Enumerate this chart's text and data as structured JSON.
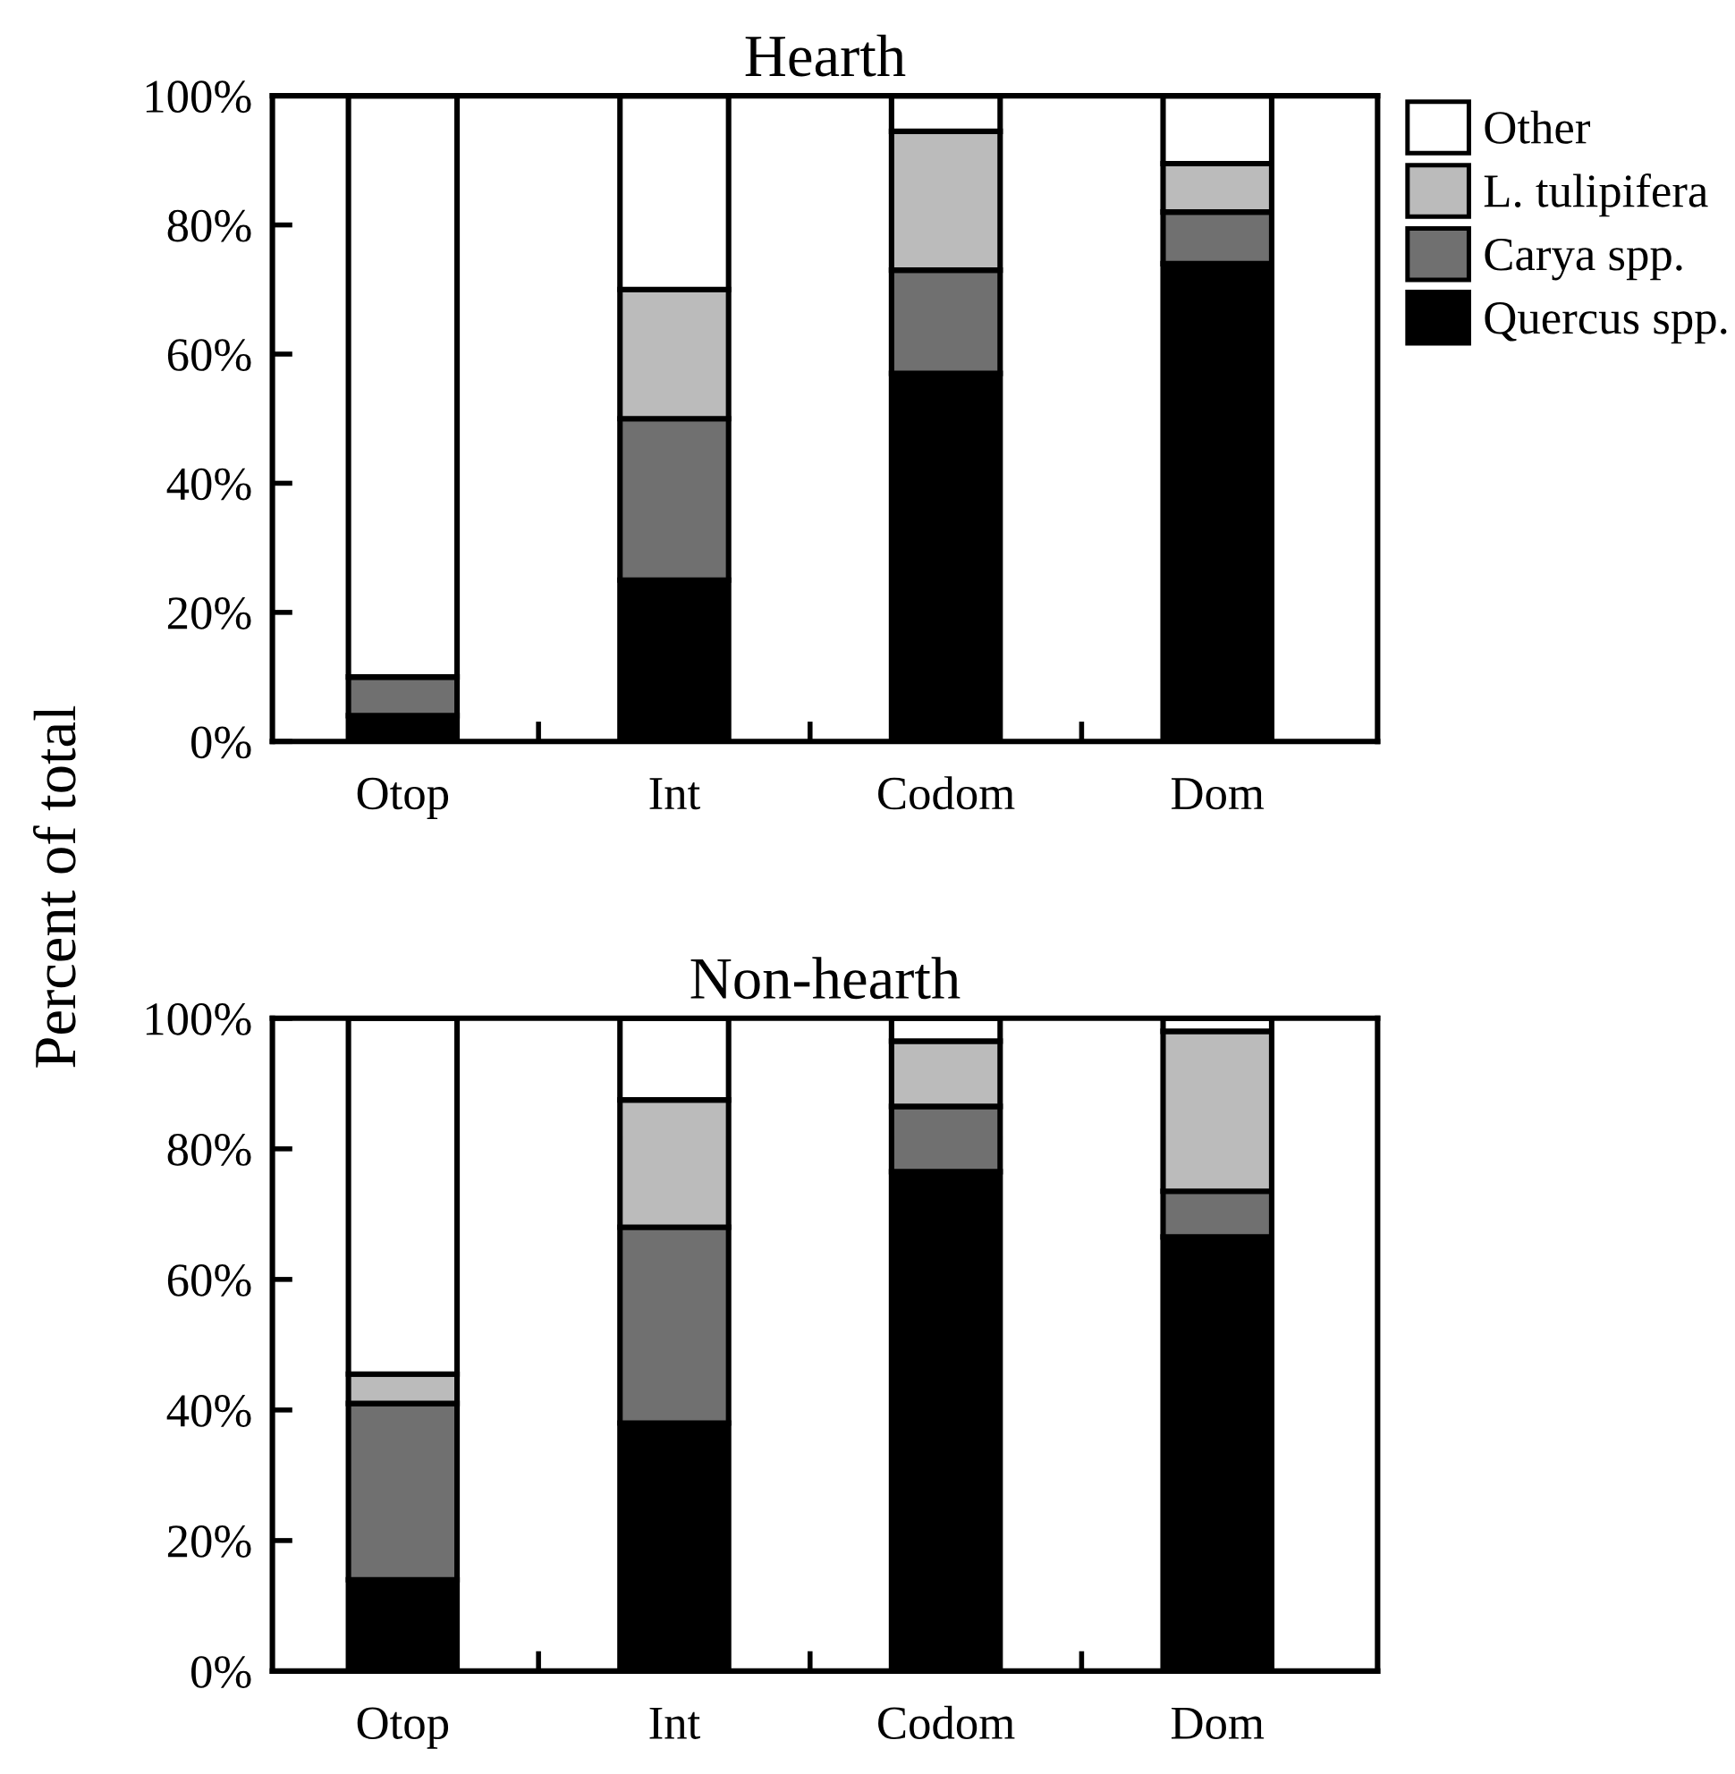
{
  "chart_data": [
    {
      "type": "bar",
      "stacked": true,
      "title": "Hearth",
      "ylabel": "Percent of total",
      "categories": [
        "Otop",
        "Int",
        "Codom",
        "Dom"
      ],
      "series": [
        {
          "name": "Quercus spp.",
          "color": "#000000",
          "values": [
            4,
            25,
            57,
            74
          ]
        },
        {
          "name": "Carya spp.",
          "color": "#707070",
          "values": [
            6,
            25,
            16,
            8
          ]
        },
        {
          "name": "L. tulipifera",
          "color": "#bbbbbb",
          "values": [
            0,
            20,
            21.5,
            7.5
          ]
        },
        {
          "name": "Other",
          "color": "#ffffff",
          "values": [
            90,
            30,
            5.5,
            10.5
          ]
        }
      ],
      "ylim": [
        0,
        100
      ],
      "yticks": [
        {
          "value": 0,
          "label": "0%"
        },
        {
          "value": 20,
          "label": "20%"
        },
        {
          "value": 40,
          "label": "40%"
        },
        {
          "value": 60,
          "label": "60%"
        },
        {
          "value": 80,
          "label": "80%"
        },
        {
          "value": 100,
          "label": "100%"
        }
      ],
      "legend": "right",
      "grid": false
    },
    {
      "type": "bar",
      "stacked": true,
      "title": "Non-hearth",
      "categories": [
        "Otop",
        "Int",
        "Codom",
        "Dom"
      ],
      "series": [
        {
          "color": "#000000",
          "values": [
            14,
            38,
            76.5,
            66.5
          ]
        },
        {
          "color": "#707070",
          "values": [
            27,
            30,
            10,
            7
          ]
        },
        {
          "color": "#bbbbbb",
          "values": [
            4.5,
            19.5,
            10,
            24.5
          ]
        },
        {
          "color": "#ffffff",
          "values": [
            54.5,
            12.5,
            3.5,
            2
          ]
        }
      ],
      "ylim": [
        0,
        100
      ],
      "yticks": [
        {
          "value": 0,
          "label": "0%"
        },
        {
          "value": 20,
          "label": "20%"
        },
        {
          "value": 40,
          "label": "40%"
        },
        {
          "value": 60,
          "label": "60%"
        },
        {
          "value": 80,
          "label": "80%"
        },
        {
          "value": 100,
          "label": "100%"
        }
      ],
      "legend": false,
      "grid": false
    }
  ]
}
